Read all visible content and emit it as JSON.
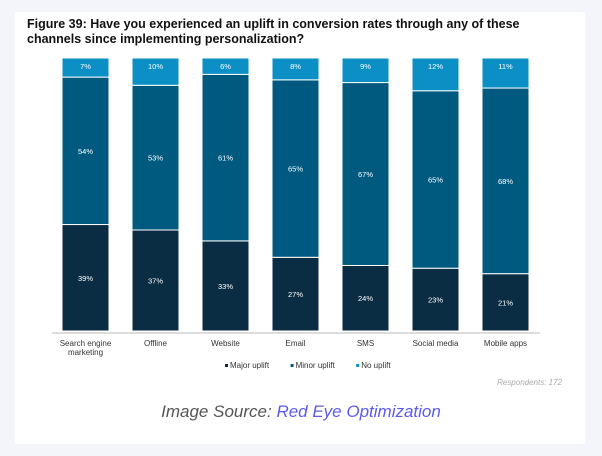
{
  "chart_data": {
    "type": "bar",
    "stacked": true,
    "title": "Figure 39: Have you experienced an uplift in conversion rates through any of these channels since implementing personalization?",
    "categories": [
      "Search engine marketing",
      "Offline",
      "Website",
      "Email",
      "SMS",
      "Social media",
      "Mobile apps"
    ],
    "series": [
      {
        "name": "Major uplift",
        "color": "#0b2d44",
        "values": [
          39,
          37,
          33,
          27,
          24,
          23,
          21
        ]
      },
      {
        "name": "Minor uplift",
        "color": "#005a80",
        "values": [
          54,
          53,
          61,
          65,
          67,
          65,
          68
        ]
      },
      {
        "name": "No uplift",
        "color": "#0b8fc4",
        "values": [
          7,
          10,
          6,
          8,
          9,
          12,
          11
        ]
      }
    ],
    "ylim": [
      0,
      100
    ],
    "unit": "%",
    "grid": false,
    "legend": "bottom",
    "note": "Respondents: 172"
  },
  "source": {
    "label": "Image Source:",
    "link": "Red Eye Optimization"
  }
}
